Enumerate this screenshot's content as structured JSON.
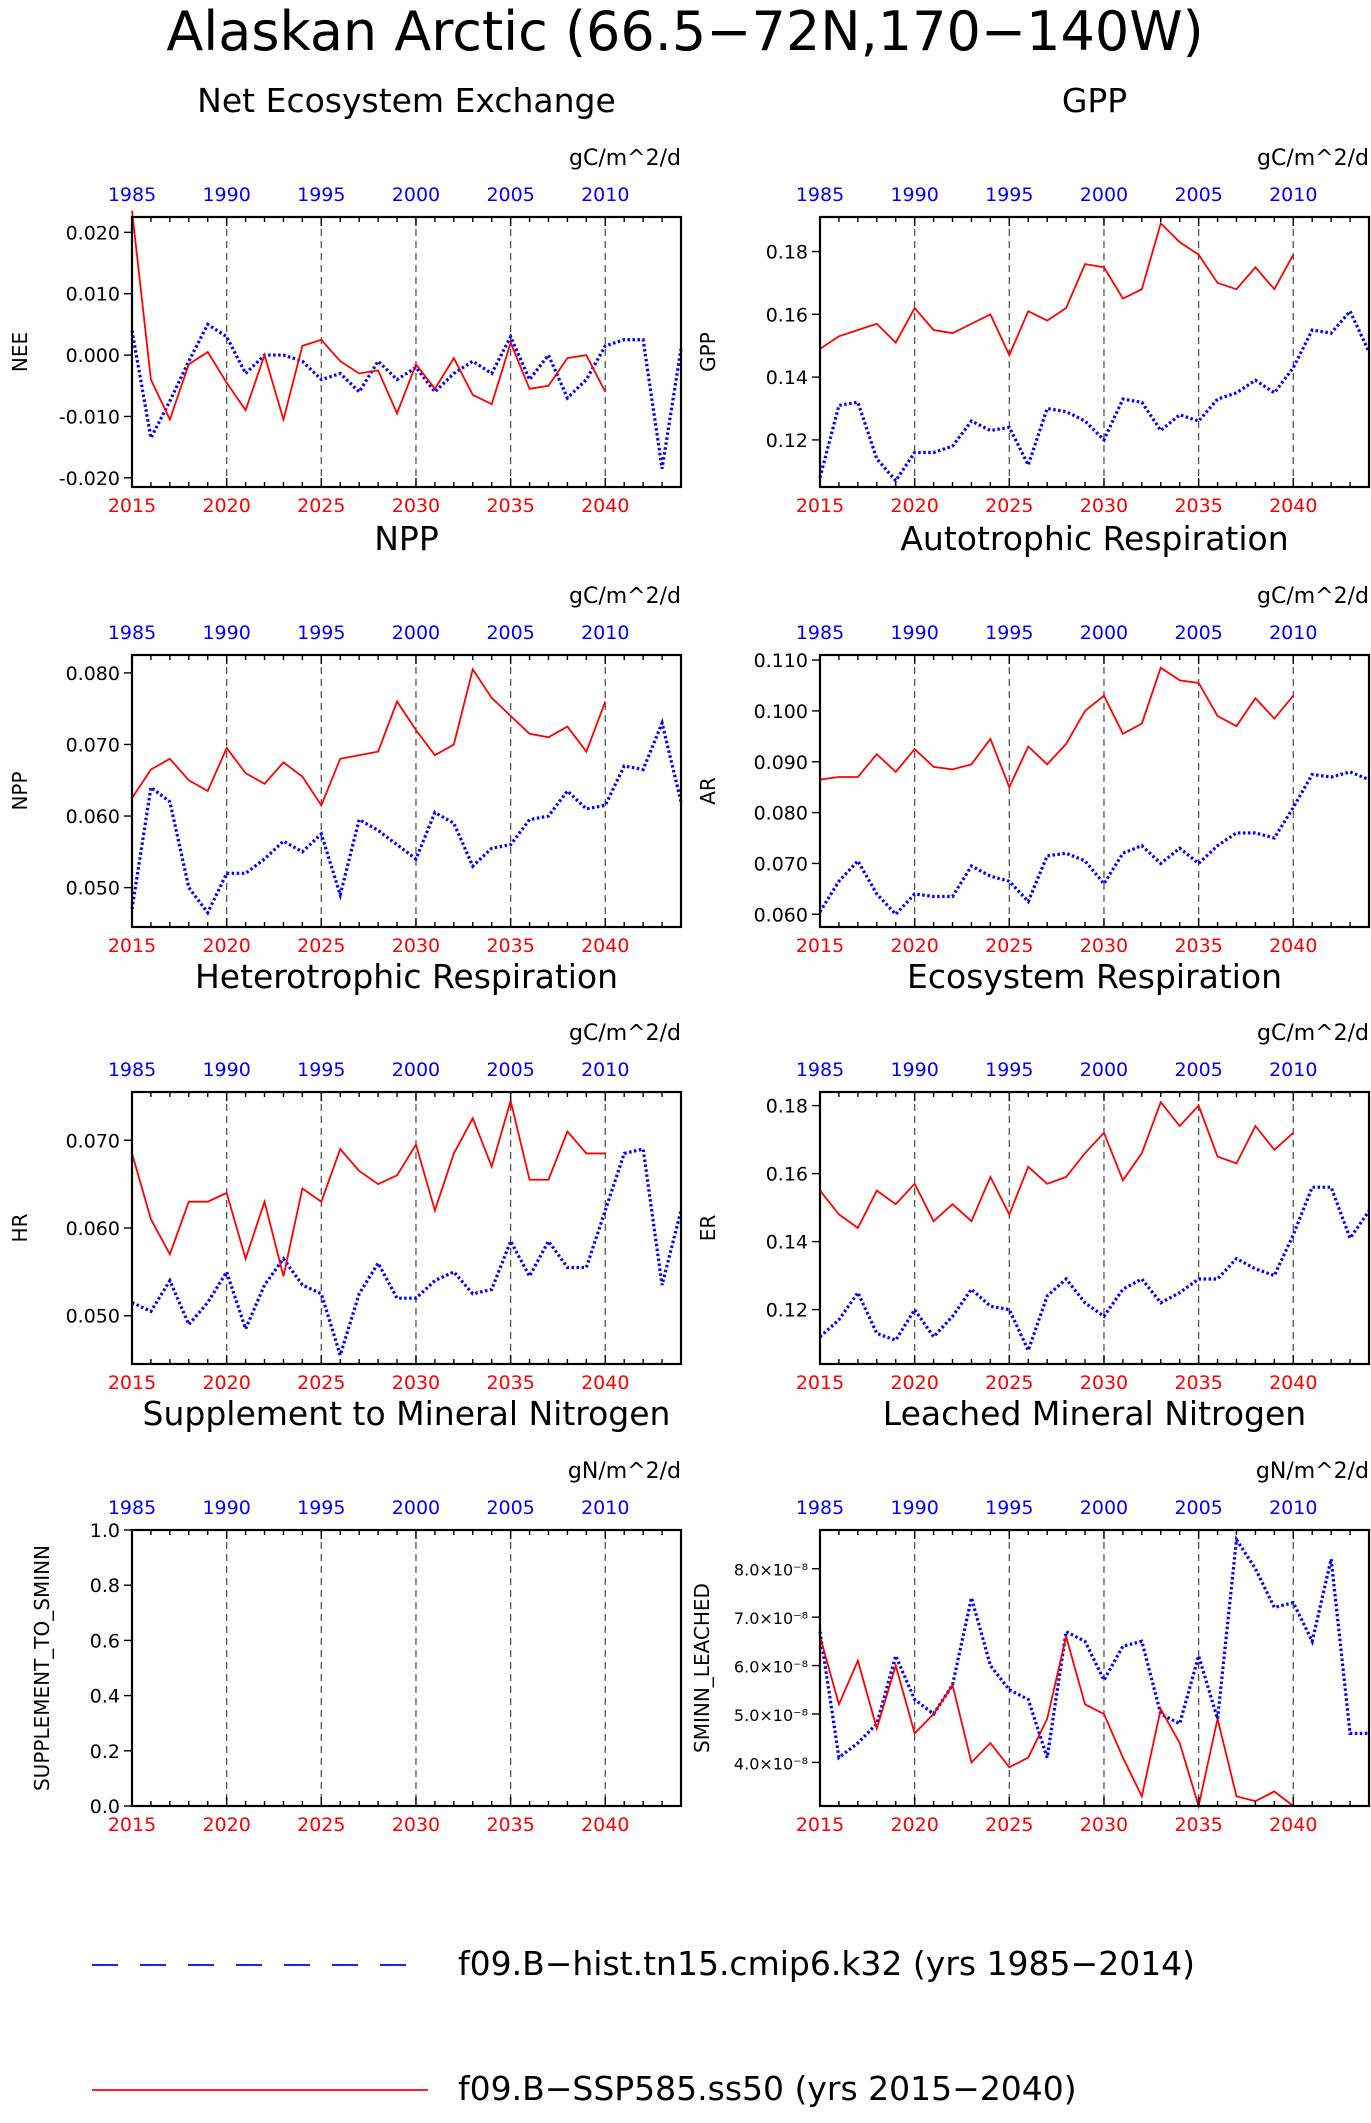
{
  "title": "Alaskan Arctic (66.5−72N,170−140W)",
  "colors": {
    "historical": "#0000ff",
    "future": "#ff0000",
    "axis": "#000000",
    "gridline": "#555555"
  },
  "top_axis": {
    "tick_labels": [
      "1985",
      "1990",
      "1995",
      "2000",
      "2005",
      "2010"
    ]
  },
  "bottom_axis": {
    "tick_labels": [
      "2015",
      "2020",
      "2025",
      "2030",
      "2035",
      "2040"
    ]
  },
  "legend": {
    "placement": "bottom",
    "entries": [
      {
        "label": "f09.B−hist.tn15.cmip6.k32 (yrs 1985−2014)",
        "color": "#0000ff",
        "style": "dashed"
      },
      {
        "label": "f09.B−SSP585.ss50 (yrs 2015−2040)",
        "color": "#ff0000",
        "style": "solid"
      }
    ]
  },
  "chart_data": [
    {
      "type": "line",
      "title": "Net Ecosystem Exchange",
      "ylabel": "NEE",
      "units": "gC/m^2/d",
      "ylim": [
        -0.0215,
        0.0225
      ],
      "yticks": [
        -0.02,
        -0.01,
        0.0,
        0.01,
        0.02
      ],
      "ytick_labels": [
        "-0.020",
        "-0.010",
        "0.000",
        "0.010",
        "0.020"
      ],
      "series": [
        {
          "name": "f09.B−hist.tn15.cmip6.k32 (yrs 1985−2014)",
          "x_start": 1985,
          "values": [
            0.004,
            -0.0135,
            -0.0075,
            -0.001,
            0.005,
            0.003,
            -0.003,
            0.0,
            0.0,
            -0.001,
            -0.004,
            -0.003,
            -0.006,
            -0.001,
            -0.004,
            -0.002,
            -0.006,
            -0.003,
            -0.001,
            -0.003,
            0.003,
            -0.004,
            0.0,
            -0.007,
            -0.004,
            0.0015,
            0.0025,
            0.0025,
            -0.0185,
            0.001
          ]
        },
        {
          "name": "f09.B−SSP585.ss50 (yrs 2015−2040)",
          "x_start": 2015,
          "values": [
            0.0235,
            -0.004,
            -0.0105,
            -0.0015,
            0.0005,
            -0.0045,
            -0.009,
            0.0,
            -0.0105,
            0.0015,
            0.0025,
            -0.001,
            -0.003,
            -0.0025,
            -0.0095,
            -0.0015,
            -0.0055,
            -0.0005,
            -0.0065,
            -0.008,
            0.002,
            -0.0055,
            -0.005,
            -0.0005,
            0.0,
            -0.006
          ]
        }
      ]
    },
    {
      "type": "line",
      "title": "GPP",
      "ylabel": "GPP",
      "units": "gC/m^2/d",
      "ylim": [
        0.105,
        0.191
      ],
      "yticks": [
        0.12,
        0.14,
        0.16,
        0.18
      ],
      "ytick_labels": [
        "0.12",
        "0.14",
        "0.16",
        "0.18"
      ],
      "series": [
        {
          "name": "f09.B−hist.tn15.cmip6.k32 (yrs 1985−2014)",
          "x_start": 1985,
          "values": [
            0.108,
            0.131,
            0.132,
            0.114,
            0.107,
            0.116,
            0.116,
            0.118,
            0.126,
            0.123,
            0.124,
            0.112,
            0.13,
            0.129,
            0.126,
            0.12,
            0.133,
            0.132,
            0.123,
            0.128,
            0.126,
            0.133,
            0.135,
            0.139,
            0.135,
            0.143,
            0.155,
            0.154,
            0.161,
            0.148
          ]
        },
        {
          "name": "f09.B−SSP585.ss50 (yrs 2015−2040)",
          "x_start": 2015,
          "values": [
            0.149,
            0.153,
            0.155,
            0.157,
            0.151,
            0.162,
            0.155,
            0.154,
            0.157,
            0.16,
            0.147,
            0.161,
            0.158,
            0.162,
            0.176,
            0.175,
            0.165,
            0.168,
            0.189,
            0.183,
            0.179,
            0.17,
            0.168,
            0.175,
            0.168,
            0.179
          ]
        }
      ]
    },
    {
      "type": "line",
      "title": "NPP",
      "ylabel": "NPP",
      "units": "gC/m^2/d",
      "ylim": [
        0.0445,
        0.0825
      ],
      "yticks": [
        0.05,
        0.06,
        0.07,
        0.08
      ],
      "ytick_labels": [
        "0.050",
        "0.060",
        "0.070",
        "0.080"
      ],
      "series": [
        {
          "name": "f09.B−hist.tn15.cmip6.k32 (yrs 1985−2014)",
          "x_start": 1985,
          "values": [
            0.047,
            0.064,
            0.062,
            0.05,
            0.0465,
            0.052,
            0.052,
            0.054,
            0.0565,
            0.055,
            0.0575,
            0.049,
            0.0595,
            0.058,
            0.056,
            0.054,
            0.0605,
            0.059,
            0.053,
            0.0555,
            0.056,
            0.0595,
            0.06,
            0.0635,
            0.061,
            0.0615,
            0.067,
            0.0665,
            0.073,
            0.062
          ]
        },
        {
          "name": "f09.B−SSP585.ss50 (yrs 2015−2040)",
          "x_start": 2015,
          "values": [
            0.0625,
            0.0665,
            0.068,
            0.065,
            0.0635,
            0.0695,
            0.066,
            0.0645,
            0.0675,
            0.0655,
            0.0615,
            0.068,
            0.0685,
            0.069,
            0.076,
            0.072,
            0.0685,
            0.07,
            0.0805,
            0.0765,
            0.074,
            0.0715,
            0.071,
            0.0725,
            0.069,
            0.076
          ]
        }
      ]
    },
    {
      "type": "line",
      "title": "Autotrophic Respiration",
      "ylabel": "AR",
      "units": "gC/m^2/d",
      "ylim": [
        0.0575,
        0.111
      ],
      "yticks": [
        0.06,
        0.07,
        0.08,
        0.09,
        0.1,
        0.11
      ],
      "ytick_labels": [
        "0.060",
        "0.070",
        "0.080",
        "0.090",
        "0.100",
        "0.110"
      ],
      "series": [
        {
          "name": "f09.B−hist.tn15.cmip6.k32 (yrs 1985−2014)",
          "x_start": 1985,
          "values": [
            0.0605,
            0.0665,
            0.0705,
            0.064,
            0.06,
            0.064,
            0.0635,
            0.0635,
            0.0695,
            0.0675,
            0.0665,
            0.0625,
            0.0715,
            0.072,
            0.0705,
            0.066,
            0.072,
            0.0735,
            0.07,
            0.073,
            0.07,
            0.0735,
            0.076,
            0.076,
            0.075,
            0.081,
            0.0875,
            0.087,
            0.088,
            0.0865
          ]
        },
        {
          "name": "f09.B−SSP585.ss50 (yrs 2015−2040)",
          "x_start": 2015,
          "values": [
            0.0865,
            0.087,
            0.087,
            0.0915,
            0.088,
            0.0925,
            0.089,
            0.0885,
            0.0895,
            0.0945,
            0.085,
            0.093,
            0.0895,
            0.0935,
            0.1,
            0.103,
            0.0955,
            0.0975,
            0.1085,
            0.106,
            0.1055,
            0.099,
            0.097,
            0.1025,
            0.0985,
            0.103
          ]
        }
      ]
    },
    {
      "type": "line",
      "title": "Heterotrophic Respiration",
      "ylabel": "HR",
      "units": "gC/m^2/d",
      "ylim": [
        0.0445,
        0.0755
      ],
      "yticks": [
        0.05,
        0.06,
        0.07
      ],
      "ytick_labels": [
        "0.050",
        "0.060",
        "0.070"
      ],
      "series": [
        {
          "name": "f09.B−hist.tn15.cmip6.k32 (yrs 1985−2014)",
          "x_start": 1985,
          "values": [
            0.0515,
            0.0505,
            0.054,
            0.049,
            0.0515,
            0.055,
            0.0485,
            0.0535,
            0.0565,
            0.0535,
            0.0525,
            0.0455,
            0.0525,
            0.056,
            0.052,
            0.052,
            0.054,
            0.055,
            0.0525,
            0.053,
            0.0585,
            0.0545,
            0.0585,
            0.0555,
            0.0555,
            0.062,
            0.0685,
            0.069,
            0.0535,
            0.062
          ]
        },
        {
          "name": "f09.B−SSP585.ss50 (yrs 2015−2040)",
          "x_start": 2015,
          "values": [
            0.0685,
            0.061,
            0.057,
            0.063,
            0.063,
            0.064,
            0.0565,
            0.063,
            0.0545,
            0.0645,
            0.063,
            0.069,
            0.0665,
            0.065,
            0.066,
            0.0695,
            0.062,
            0.0685,
            0.0725,
            0.067,
            0.0745,
            0.0655,
            0.0655,
            0.071,
            0.0685,
            0.0685
          ]
        }
      ]
    },
    {
      "type": "line",
      "title": "Ecosystem Respiration",
      "ylabel": "ER",
      "units": "gC/m^2/d",
      "ylim": [
        0.104,
        0.184
      ],
      "yticks": [
        0.12,
        0.14,
        0.16,
        0.18
      ],
      "ytick_labels": [
        "0.12",
        "0.14",
        "0.16",
        "0.18"
      ],
      "series": [
        {
          "name": "f09.B−hist.tn15.cmip6.k32 (yrs 1985−2014)",
          "x_start": 1985,
          "values": [
            0.112,
            0.117,
            0.125,
            0.113,
            0.111,
            0.12,
            0.112,
            0.118,
            0.126,
            0.121,
            0.12,
            0.108,
            0.124,
            0.129,
            0.122,
            0.118,
            0.126,
            0.129,
            0.122,
            0.125,
            0.129,
            0.129,
            0.135,
            0.132,
            0.13,
            0.142,
            0.156,
            0.156,
            0.141,
            0.149
          ]
        },
        {
          "name": "f09.B−SSP585.ss50 (yrs 2015−2040)",
          "x_start": 2015,
          "values": [
            0.155,
            0.148,
            0.144,
            0.155,
            0.151,
            0.157,
            0.146,
            0.151,
            0.146,
            0.159,
            0.148,
            0.162,
            0.157,
            0.159,
            0.166,
            0.172,
            0.158,
            0.166,
            0.181,
            0.174,
            0.18,
            0.165,
            0.163,
            0.174,
            0.167,
            0.172
          ]
        }
      ]
    },
    {
      "type": "line",
      "title": "Supplement to Mineral Nitrogen",
      "ylabel": "SUPPLEMENT_TO_SMINN",
      "units": "gN/m^2/d",
      "ylim": [
        0.0,
        1.0
      ],
      "yticks": [
        0.0,
        0.2,
        0.4,
        0.6,
        0.8,
        1.0
      ],
      "ytick_labels": [
        "0.0",
        "0.2",
        "0.4",
        "0.6",
        "0.8",
        "1.0"
      ],
      "series": []
    },
    {
      "type": "line",
      "title": "Leached Mineral Nitrogen",
      "ylabel": "SMINN_LEACHED",
      "units": "gN/m^2/d",
      "ylim": [
        3.1e-08,
        8.8e-08
      ],
      "yticks": [
        4e-08,
        5e-08,
        6e-08,
        7e-08,
        8e-08
      ],
      "ytick_labels": [
        "4.0×10⁻⁸",
        "5.0×10⁻⁸",
        "6.0×10⁻⁸",
        "7.0×10⁻⁸",
        "8.0×10⁻⁸"
      ],
      "series": [
        {
          "name": "f09.B−hist.tn15.cmip6.k32 (yrs 1985−2014)",
          "x_start": 1985,
          "values": [
            6.7e-08,
            4.1e-08,
            4.4e-08,
            4.8e-08,
            6.2e-08,
            5.3e-08,
            5e-08,
            5.6e-08,
            7.4e-08,
            6e-08,
            5.5e-08,
            5.3e-08,
            4.1e-08,
            6.7e-08,
            6.5e-08,
            5.7e-08,
            6.4e-08,
            6.5e-08,
            5e-08,
            4.8e-08,
            6.2e-08,
            4.9e-08,
            8.6e-08,
            8e-08,
            7.2e-08,
            7.3e-08,
            6.5e-08,
            8.2e-08,
            4.6e-08,
            4.6e-08
          ]
        },
        {
          "name": "f09.B−SSP585.ss50 (yrs 2015−2040)",
          "x_start": 2015,
          "values": [
            6.6e-08,
            5.2e-08,
            6.1e-08,
            4.7e-08,
            6e-08,
            4.6e-08,
            5e-08,
            5.6e-08,
            4e-08,
            4.4e-08,
            3.9e-08,
            4.1e-08,
            4.9e-08,
            6.6e-08,
            5.2e-08,
            5e-08,
            4.1e-08,
            3.3e-08,
            5.1e-08,
            4.4e-08,
            3.1e-08,
            4.9e-08,
            3.3e-08,
            3.2e-08,
            3.4e-08,
            3.1e-08
          ]
        }
      ]
    }
  ]
}
